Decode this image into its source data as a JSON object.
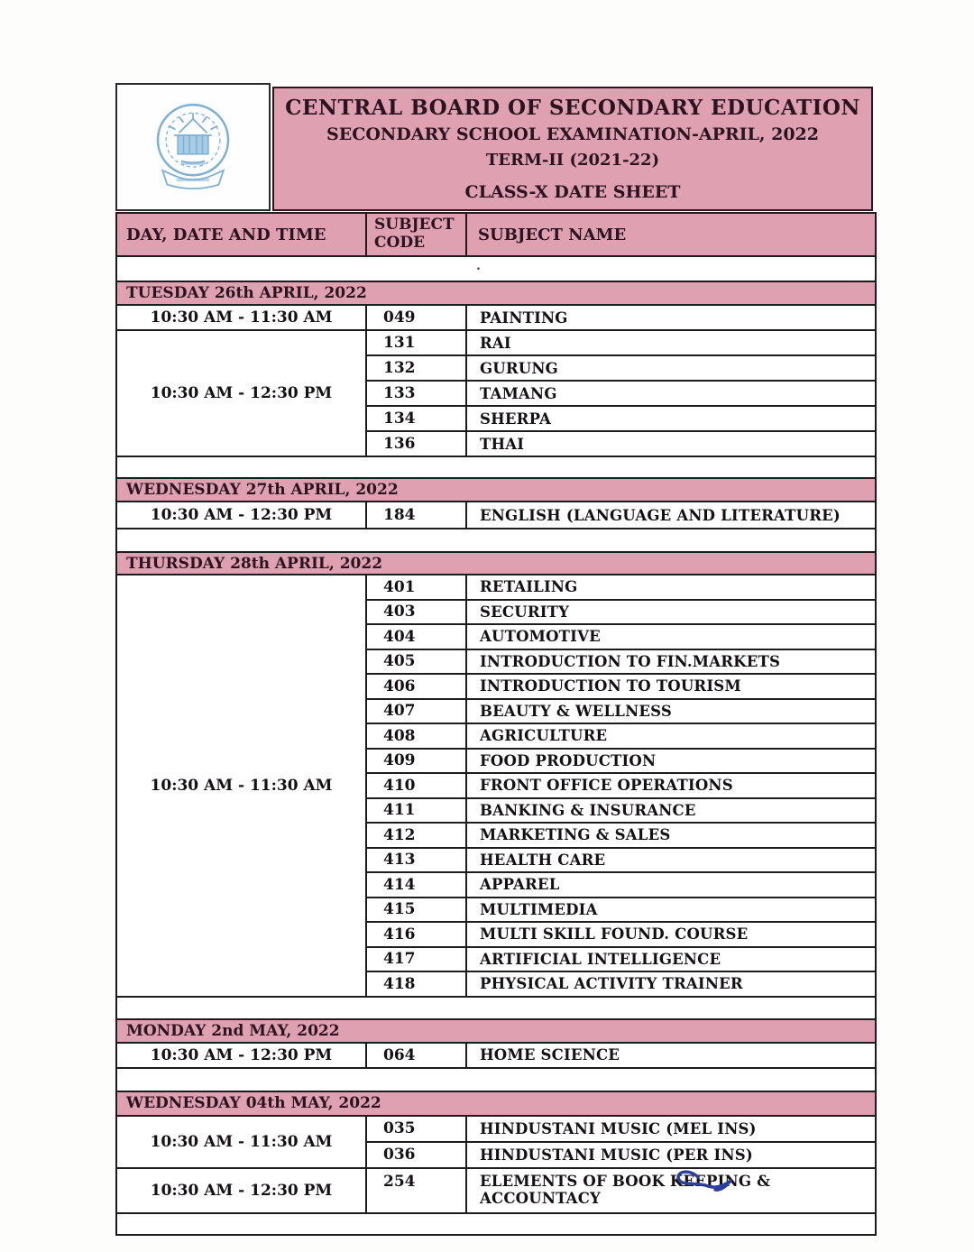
{
  "title": {
    "board": "CENTRAL BOARD OF SECONDARY EDUCATION",
    "exam": "SECONDARY SCHOOL EXAMINATION-APRIL, 2022",
    "term": "TERM-II (2021-22)",
    "sheet": "CLASS-X DATE SHEET"
  },
  "columns": {
    "day": "DAY, DATE AND TIME",
    "code": "SUBJECT CODE",
    "name": "SUBJECT NAME"
  },
  "stray_dot": ".",
  "colors": {
    "pink": "#dfa0b2",
    "border": "#1c1c1c",
    "header_text": "#2a141e",
    "signature_blue": "#2c3f9e",
    "logo_blue": "#7fb0d6"
  },
  "logo": {
    "name": "CBSE emblem"
  },
  "sections": [
    {
      "day": "TUESDAY 26th APRIL, 2022",
      "groups": [
        {
          "time": "10:30 AM - 11:30 AM",
          "subjects": [
            {
              "code": "049",
              "name": "PAINTING"
            }
          ]
        },
        {
          "time": "10:30 AM - 12:30 PM",
          "subjects": [
            {
              "code": "131",
              "name": "RAI"
            },
            {
              "code": "132",
              "name": "GURUNG"
            },
            {
              "code": "133",
              "name": "TAMANG"
            },
            {
              "code": "134",
              "name": "SHERPA"
            },
            {
              "code": "136",
              "name": "THAI"
            }
          ]
        }
      ]
    },
    {
      "day": "WEDNESDAY 27th APRIL, 2022",
      "groups": [
        {
          "time": "10:30 AM - 12:30 PM",
          "subjects": [
            {
              "code": "184",
              "name": "ENGLISH (LANGUAGE AND LITERATURE)"
            }
          ]
        }
      ]
    },
    {
      "day": "THURSDAY 28th APRIL, 2022",
      "groups": [
        {
          "time": "10:30 AM - 11:30 AM",
          "subjects": [
            {
              "code": "401",
              "name": "RETAILING"
            },
            {
              "code": "403",
              "name": "SECURITY"
            },
            {
              "code": "404",
              "name": "AUTOMOTIVE"
            },
            {
              "code": "405",
              "name": "INTRODUCTION TO FIN.MARKETS"
            },
            {
              "code": "406",
              "name": "INTRODUCTION TO TOURISM"
            },
            {
              "code": "407",
              "name": "BEAUTY & WELLNESS"
            },
            {
              "code": "408",
              "name": "AGRICULTURE"
            },
            {
              "code": "409",
              "name": "FOOD PRODUCTION"
            },
            {
              "code": "410",
              "name": "FRONT OFFICE OPERATIONS"
            },
            {
              "code": "411",
              "name": "BANKING & INSURANCE"
            },
            {
              "code": "412",
              "name": "MARKETING & SALES"
            },
            {
              "code": "413",
              "name": "HEALTH  CARE"
            },
            {
              "code": "414",
              "name": "APPAREL"
            },
            {
              "code": "415",
              "name": "MULTIMEDIA"
            },
            {
              "code": "416",
              "name": "MULTI SKILL FOUND. COURSE"
            },
            {
              "code": "417",
              "name": "ARTIFICIAL INTELLIGENCE"
            },
            {
              "code": "418",
              "name": "PHYSICAL ACTIVITY TRAINER"
            }
          ]
        }
      ]
    },
    {
      "day": "MONDAY 2nd MAY, 2022",
      "groups": [
        {
          "time": "10:30 AM - 12:30 PM",
          "subjects": [
            {
              "code": "064",
              "name": "HOME SCIENCE"
            }
          ]
        }
      ]
    },
    {
      "day": "WEDNESDAY 04th MAY, 2022",
      "groups": [
        {
          "time": "10:30 AM - 11:30 AM",
          "subjects": [
            {
              "code": "035",
              "name": "HINDUSTANI MUSIC (MEL INS)"
            },
            {
              "code": "036",
              "name": "HINDUSTANI MUSIC (PER INS)"
            }
          ]
        },
        {
          "time": "10:30 AM - 12:30 PM",
          "subjects": [
            {
              "code": "254",
              "name": "ELEMENTS OF BOOK KEEPING & ACCOUNTACY"
            }
          ]
        }
      ]
    }
  ]
}
